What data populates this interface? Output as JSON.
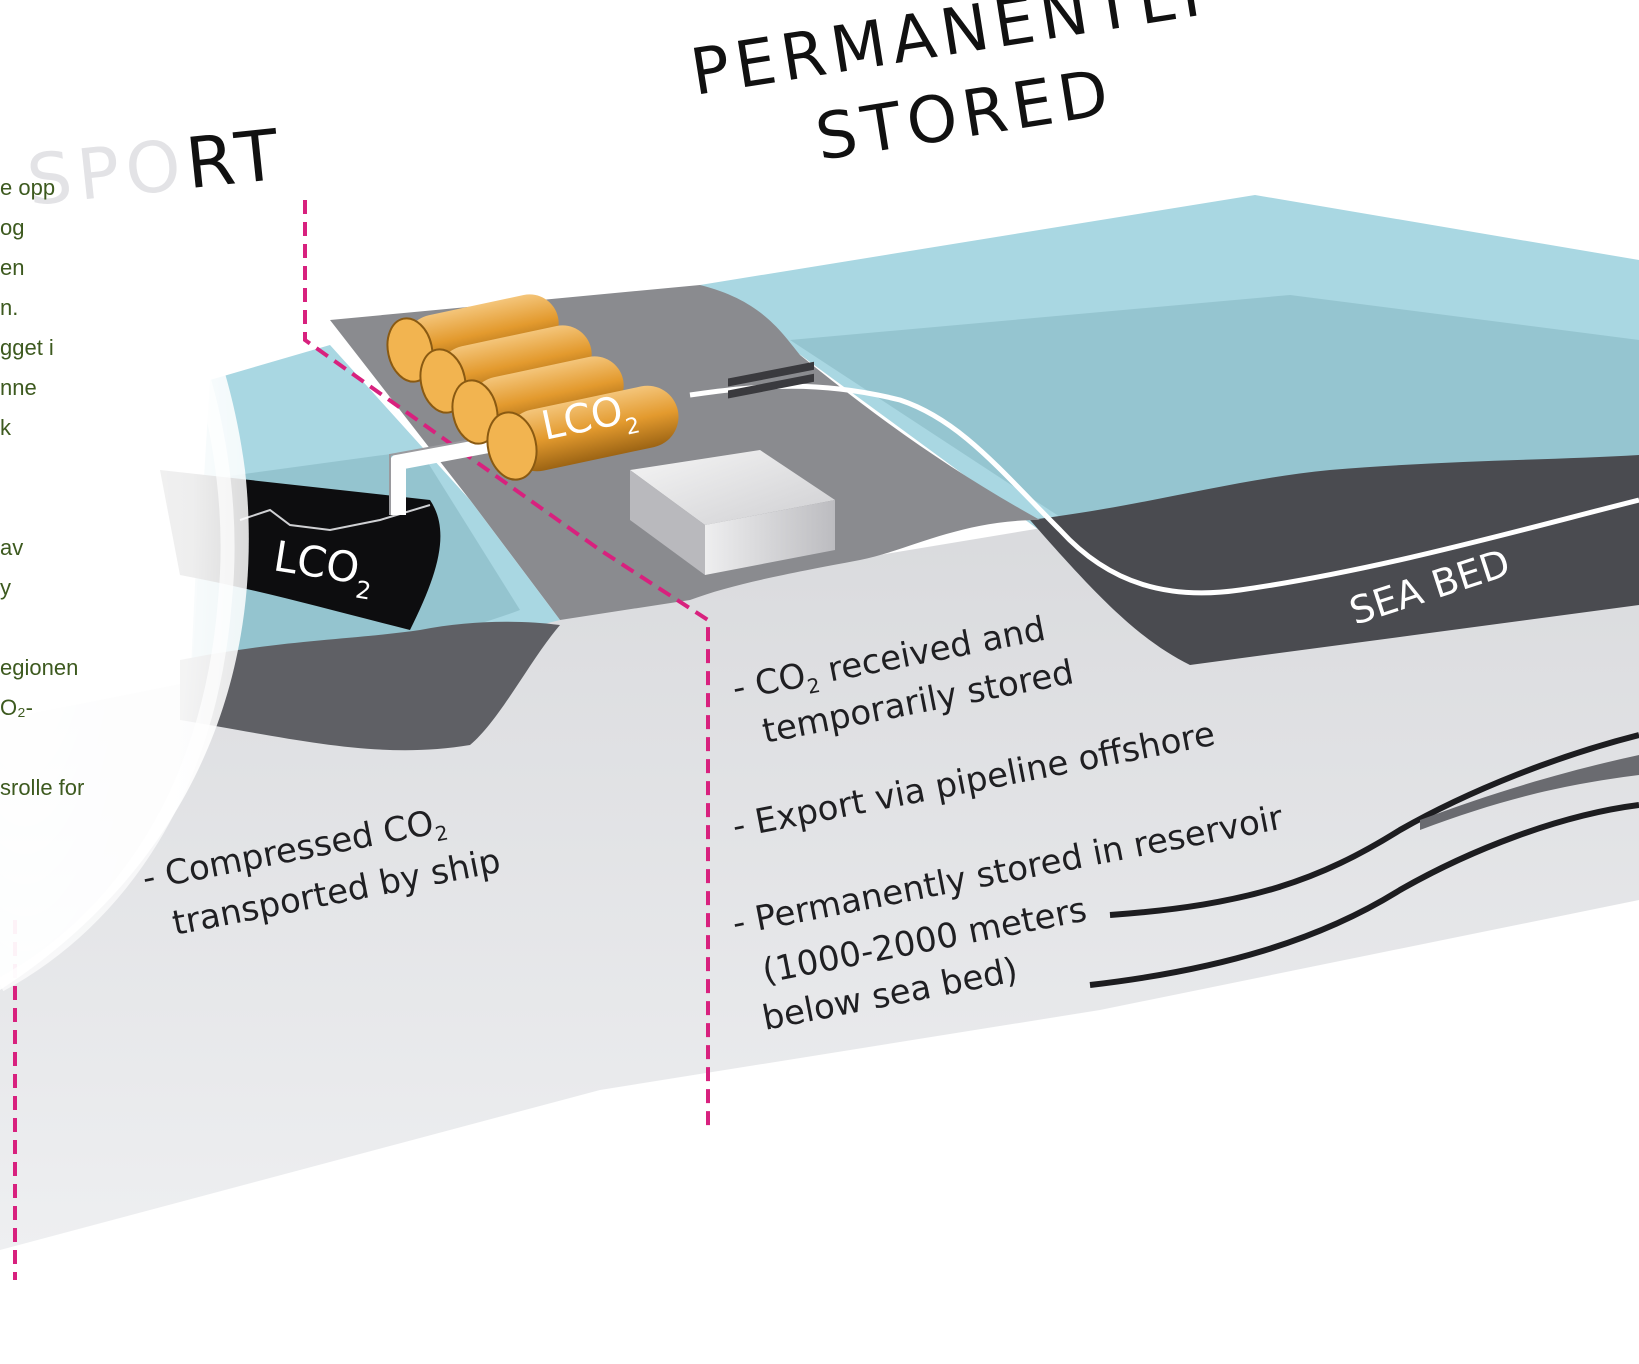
{
  "headings": {
    "transport_fragment": "SPORT",
    "stored_line1": "PERMANENTLY",
    "stored_line2": "STORED"
  },
  "side_text_lines": [
    "e opp",
    "og",
    "en",
    "n.",
    "gget i",
    "nne",
    "k",
    "",
    "",
    "av",
    "y",
    "",
    "egionen",
    "O₂-",
    "",
    "srolle for"
  ],
  "labels": {
    "ship_lco2": "LCO",
    "tank_lco2": "LCO",
    "sub2": "2",
    "sea_bed": "SEA BED"
  },
  "notes": {
    "left_line1": "- Compressed CO",
    "left_line2": "transported by ship",
    "received_line1": "- CO",
    "received_line1b": " received and",
    "received_line2": "temporarily stored",
    "export": "- Export via pipeline offshore",
    "permanent_line1": "- Permanently stored in reservoir",
    "permanent_line2": "(1000-2000 meters",
    "permanent_line3": "below sea bed)"
  },
  "colors": {
    "sea": "#a9d7e2",
    "sea_deep": "#8fbfca",
    "land": "#8a8b8f",
    "seabed": "#4a4b50",
    "ground": "#dedfe2",
    "tank": "#e5a23a",
    "dashed": "#d8217e",
    "side_text": "#3d5a1f"
  }
}
